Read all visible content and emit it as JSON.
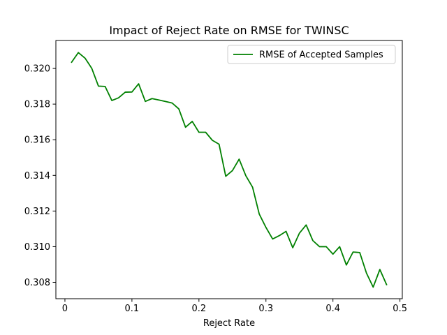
{
  "chart_data": {
    "type": "line",
    "title": "Impact of Reject Rate on RMSE for TWINSC",
    "xlabel": "Reject Rate",
    "ylabel": "",
    "xlim": [
      -0.0135,
      0.5035
    ],
    "ylim": [
      0.30708,
      0.32157
    ],
    "xticks": [
      0,
      0.1,
      0.2,
      0.3,
      0.4,
      0.5
    ],
    "xtick_labels": [
      "0",
      "0.1",
      "0.2",
      "0.3",
      "0.4",
      "0.5"
    ],
    "yticks": [
      0.308,
      0.31,
      0.312,
      0.314,
      0.316,
      0.318,
      0.32
    ],
    "ytick_labels": [
      "0.308",
      "0.310",
      "0.312",
      "0.314",
      "0.316",
      "0.318",
      "0.320"
    ],
    "grid": false,
    "legend_position": "top-right",
    "series": [
      {
        "name": "RMSE of Accepted Samples",
        "color": "#008000",
        "x": [
          0.01,
          0.02,
          0.03,
          0.04,
          0.05,
          0.06,
          0.07,
          0.08,
          0.09,
          0.1,
          0.11,
          0.12,
          0.13,
          0.14,
          0.15,
          0.16,
          0.17,
          0.18,
          0.19,
          0.2,
          0.21,
          0.22,
          0.23,
          0.24,
          0.25,
          0.26,
          0.27,
          0.28,
          0.29,
          0.3,
          0.31,
          0.32,
          0.33,
          0.34,
          0.35,
          0.36,
          0.37,
          0.38,
          0.39,
          0.4,
          0.41,
          0.42,
          0.43,
          0.44,
          0.45,
          0.46,
          0.47,
          0.48
        ],
        "values": [
          0.32035,
          0.32089,
          0.32058,
          0.32001,
          0.31901,
          0.31899,
          0.3182,
          0.31835,
          0.31867,
          0.31868,
          0.31914,
          0.31815,
          0.31831,
          0.31823,
          0.31815,
          0.31806,
          0.31773,
          0.3167,
          0.31703,
          0.31642,
          0.31642,
          0.31597,
          0.31575,
          0.31395,
          0.31427,
          0.31491,
          0.31398,
          0.31334,
          0.31183,
          0.31108,
          0.31043,
          0.31062,
          0.31086,
          0.30994,
          0.31076,
          0.31122,
          0.31034,
          0.31,
          0.31,
          0.30958,
          0.31,
          0.30897,
          0.3097,
          0.30967,
          0.30852,
          0.30773,
          0.30872,
          0.30787
        ]
      }
    ]
  }
}
